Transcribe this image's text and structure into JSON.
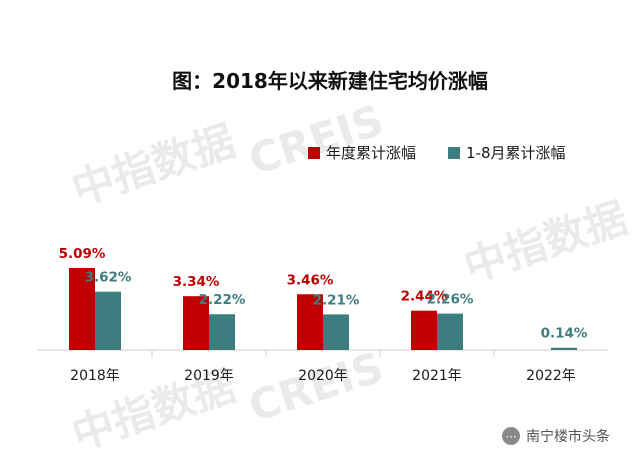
{
  "chart_data": {
    "type": "bar",
    "title": "图：2018年以来新建住宅均价涨幅",
    "categories": [
      "2018年",
      "2019年",
      "2020年",
      "2021年",
      "2022年"
    ],
    "series": [
      {
        "name": "年度累计涨幅",
        "color": "#c00000",
        "values": [
          5.09,
          3.34,
          3.46,
          2.44,
          null
        ],
        "labels": [
          "5.09%",
          "3.34%",
          "3.46%",
          "2.44%",
          ""
        ]
      },
      {
        "name": "1-8月累计涨幅",
        "color": "#3e7d7f",
        "values": [
          3.62,
          2.22,
          2.21,
          2.26,
          0.14
        ],
        "labels": [
          "3.62%",
          "2.22%",
          "2.21%",
          "2.26%",
          "0.14%"
        ]
      }
    ],
    "legend_position": "top-right",
    "grid": false
  },
  "watermark": {
    "text_1": "中指数据",
    "text_2": "CREIS"
  },
  "badge": {
    "icon": "wechat-icon",
    "text": "南宁楼市头条"
  }
}
